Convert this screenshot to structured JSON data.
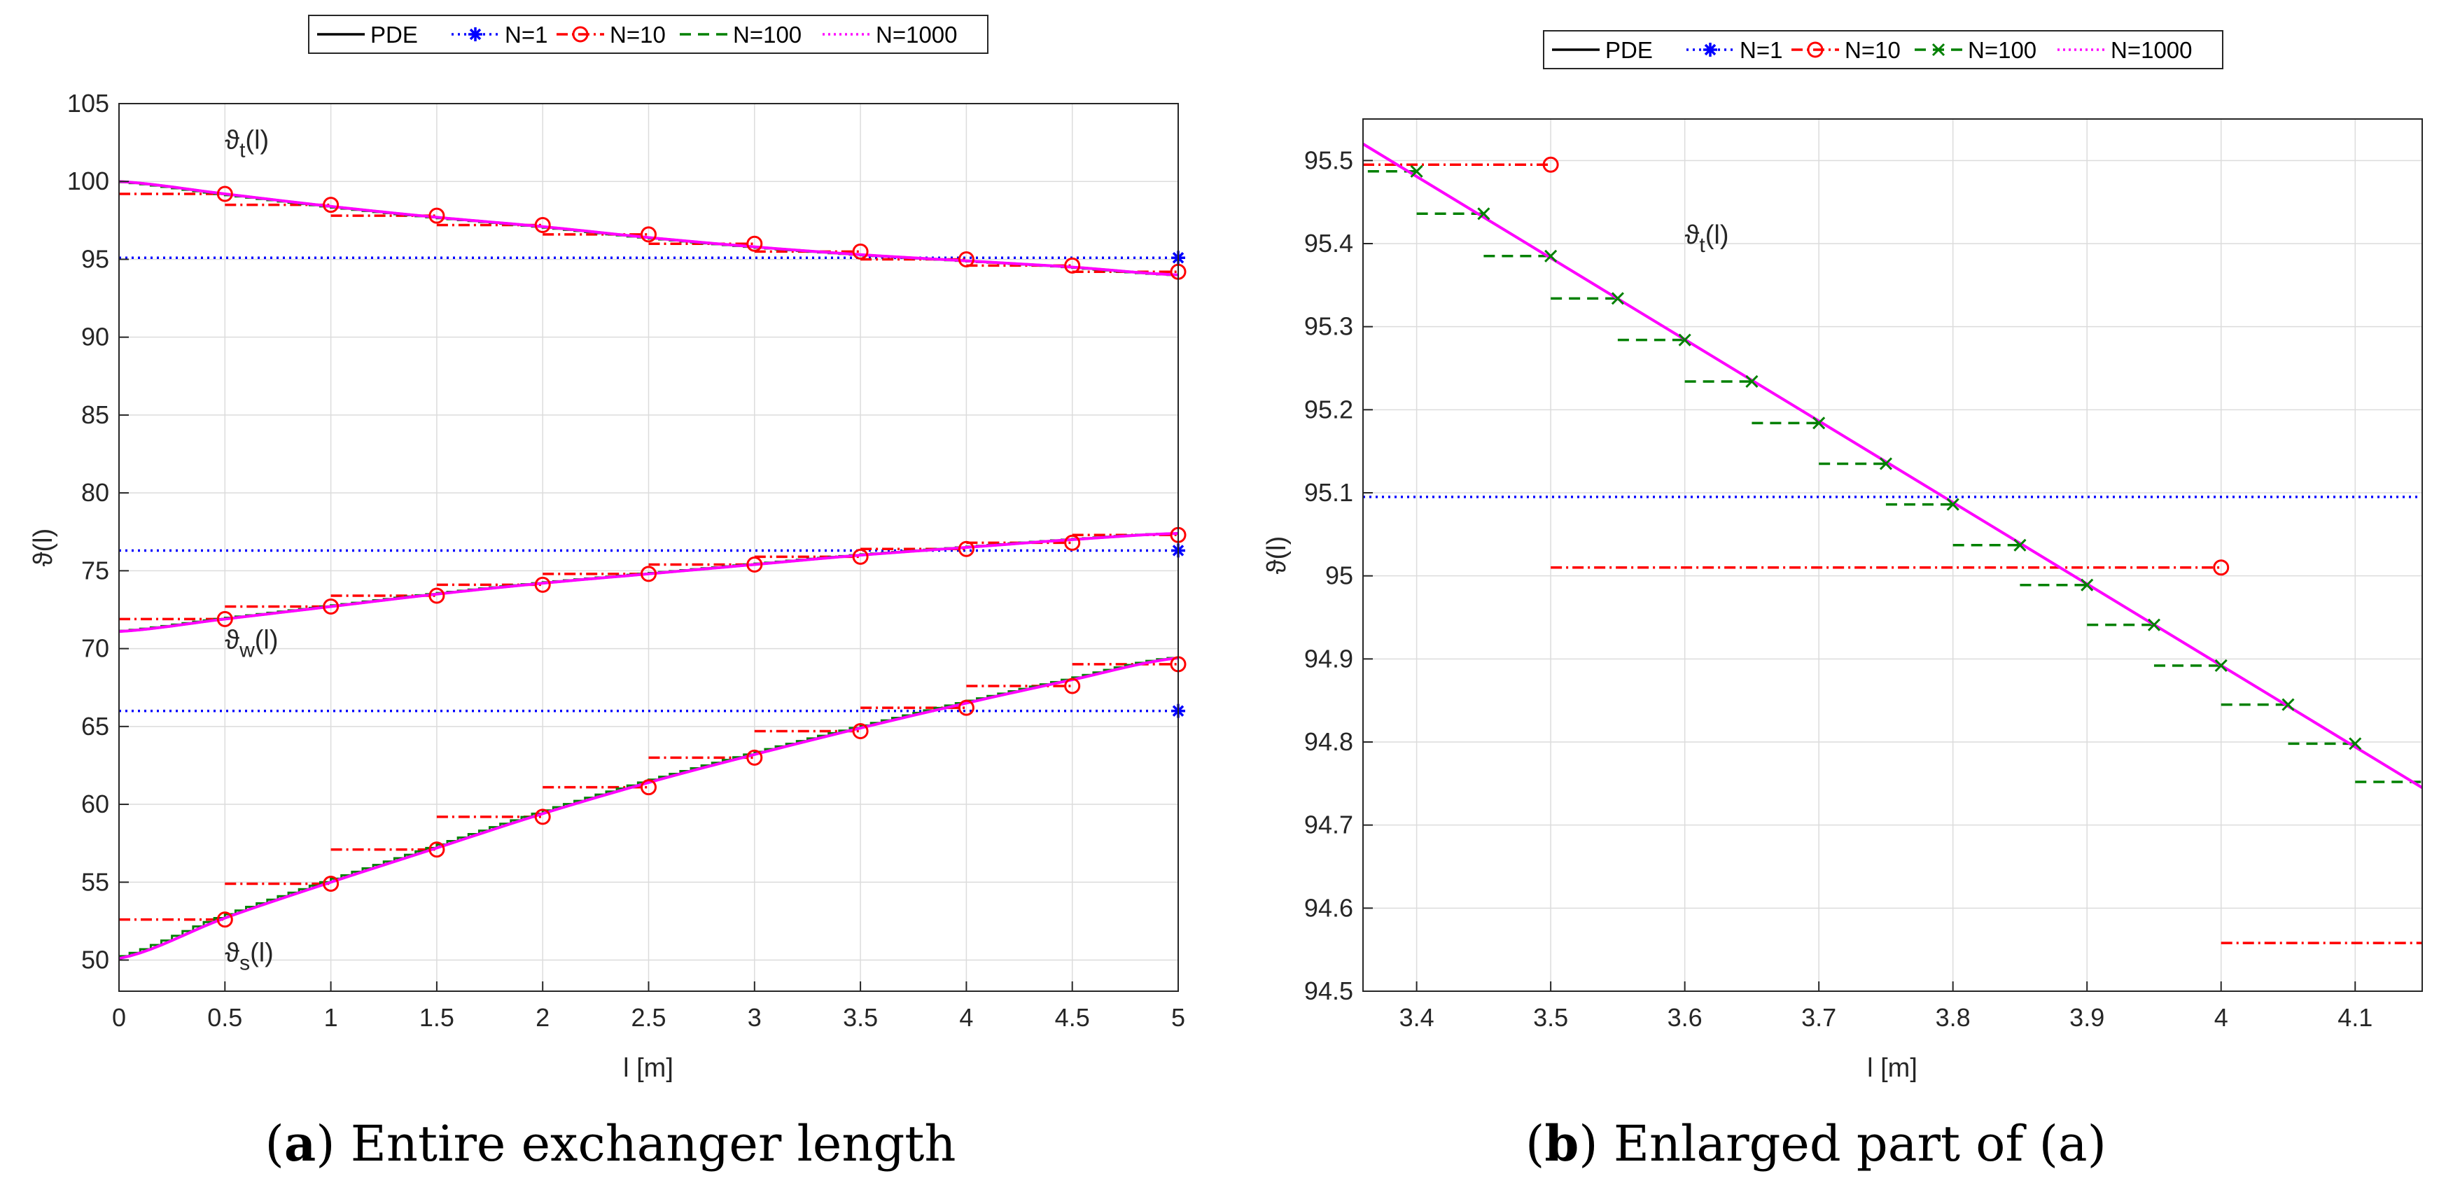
{
  "figure": {
    "captions": [
      {
        "label": "a",
        "open": "(",
        "close": ") Entire exchanger length"
      },
      {
        "label": "b",
        "open": "(",
        "close": ") Enlarged part of (a)"
      }
    ]
  },
  "colors": {
    "pde": "#000000",
    "n1": "#0000ff",
    "n10": "#ff0000",
    "n100": "#008000",
    "n1000": "#ff00ff",
    "grid": "#dcdcdc",
    "axis": "#262626"
  },
  "chart_data": [
    {
      "type": "line",
      "title": "",
      "xlabel": "l [m]",
      "ylabel": "ϑ(l)",
      "xlim": [
        0,
        5
      ],
      "ylim": [
        48,
        105
      ],
      "xticks": [
        "0",
        "0.5",
        "1",
        "1.5",
        "2",
        "2.5",
        "3",
        "3.5",
        "4",
        "4.5",
        "5"
      ],
      "yticks": [
        "50",
        "55",
        "60",
        "65",
        "70",
        "75",
        "80",
        "85",
        "90",
        "95",
        "100",
        "105"
      ],
      "grid": true,
      "legend": {
        "placement": "top-center",
        "entries": [
          "PDE",
          "N=1",
          "N=10",
          "N=100",
          "N=1000"
        ]
      },
      "curve_labels": [
        {
          "text": "ϑ",
          "sub": "t",
          "tail": "(l)",
          "x": 0.5,
          "y": 102.1
        },
        {
          "text": "ϑ",
          "sub": "w",
          "tail": "(l)",
          "x": 0.5,
          "y": 70.0
        },
        {
          "text": "ϑ",
          "sub": "s",
          "tail": "(l)",
          "x": 0.5,
          "y": 49.9
        }
      ],
      "pde": [
        {
          "name": "theta_t",
          "x": [
            0,
            0.5,
            1,
            1.5,
            2,
            2.5,
            3,
            3.5,
            4,
            4.5,
            5
          ],
          "y": [
            100.0,
            99.2,
            98.4,
            97.7,
            97.1,
            96.4,
            95.8,
            95.3,
            94.9,
            94.5,
            94.0
          ]
        },
        {
          "name": "theta_w",
          "x": [
            0,
            0.5,
            1,
            1.5,
            2,
            2.5,
            3,
            3.5,
            4,
            4.5,
            5
          ],
          "y": [
            71.1,
            71.9,
            72.7,
            73.5,
            74.2,
            74.8,
            75.4,
            76.0,
            76.5,
            77.0,
            77.4
          ]
        },
        {
          "name": "theta_s",
          "x": [
            0,
            0.5,
            1,
            1.5,
            2,
            2.5,
            3,
            3.5,
            4,
            4.5,
            5
          ],
          "y": [
            50.1,
            52.7,
            55.0,
            57.2,
            59.4,
            61.4,
            63.2,
            64.9,
            66.5,
            68.0,
            69.4
          ]
        }
      ],
      "n1": [
        {
          "name": "theta_t",
          "y": 95.1
        },
        {
          "name": "theta_w",
          "y": 76.3
        },
        {
          "name": "theta_s",
          "y": 66.0
        }
      ],
      "n10": [
        {
          "name": "theta_t",
          "x": [
            0.5,
            1,
            1.5,
            2,
            2.5,
            3,
            3.5,
            4,
            4.5,
            5
          ],
          "y": [
            99.2,
            98.5,
            97.8,
            97.2,
            96.6,
            96.0,
            95.5,
            95.0,
            94.6,
            94.2
          ]
        },
        {
          "name": "theta_w",
          "x": [
            0.5,
            1,
            1.5,
            2,
            2.5,
            3,
            3.5,
            4,
            4.5,
            5
          ],
          "y": [
            71.9,
            72.7,
            73.4,
            74.1,
            74.8,
            75.4,
            75.9,
            76.4,
            76.8,
            77.3
          ]
        },
        {
          "name": "theta_s",
          "x": [
            0.5,
            1,
            1.5,
            2,
            2.5,
            3,
            3.5,
            4,
            4.5,
            5
          ],
          "y": [
            52.6,
            54.9,
            57.1,
            59.2,
            61.1,
            63.0,
            64.7,
            66.2,
            67.6,
            69.0
          ]
        }
      ]
    },
    {
      "type": "line",
      "title": "",
      "xlabel": "l [m]",
      "ylabel": "ϑ(l)",
      "xlim": [
        3.36,
        4.15
      ],
      "ylim": [
        94.5,
        95.55
      ],
      "xticks": [
        "3.4",
        "3.5",
        "3.6",
        "3.7",
        "3.8",
        "3.9",
        "4",
        "4.1"
      ],
      "yticks": [
        "94.5",
        "94.6",
        "94.7",
        "94.8",
        "94.9",
        "95",
        "95.1",
        "95.2",
        "95.3",
        "95.4",
        "95.5"
      ],
      "grid": true,
      "legend": {
        "placement": "top-center",
        "entries": [
          "PDE",
          "N=1",
          "N=10",
          "N=100",
          "N=1000"
        ]
      },
      "curve_labels": [
        {
          "text": "ϑ",
          "sub": "t",
          "tail": "(l)",
          "x": 3.6,
          "y": 95.4
        }
      ],
      "pde": {
        "x": [
          3.36,
          4.15
        ],
        "y": [
          95.52,
          94.745
        ]
      },
      "n1": {
        "y": 95.095
      },
      "n10": [
        {
          "x_start": 3.36,
          "x_end": 3.5,
          "y": 95.495
        },
        {
          "x_start": 3.5,
          "x_end": 4.0,
          "y": 95.01
        },
        {
          "x_start": 4.0,
          "x_end": 4.15,
          "y": 94.558
        }
      ],
      "n100": {
        "x": [
          3.4,
          3.45,
          3.5,
          3.55,
          3.6,
          3.65,
          3.7,
          3.75,
          3.8,
          3.85,
          3.9,
          3.95,
          4.0,
          4.05,
          4.1
        ],
        "y": [
          95.487,
          95.436,
          95.385,
          95.334,
          95.284,
          95.234,
          95.184,
          95.135,
          95.086,
          95.037,
          94.989,
          94.941,
          94.892,
          94.845,
          94.798
        ],
        "next_step": 94.752
      }
    }
  ]
}
